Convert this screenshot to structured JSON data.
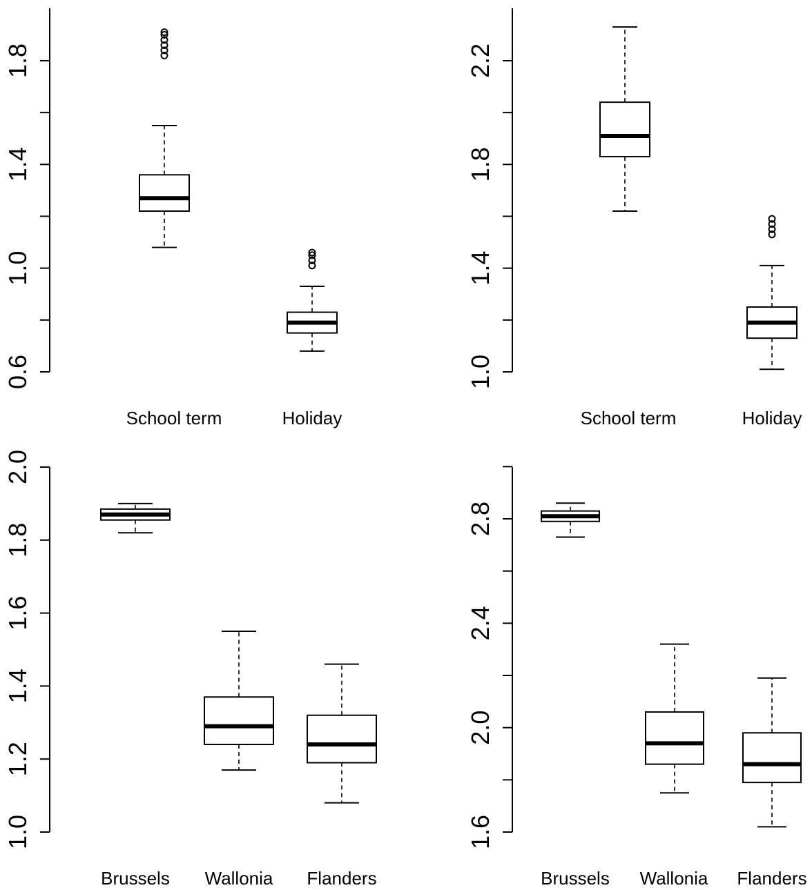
{
  "chart_data": [
    {
      "type": "box",
      "title": "",
      "xlabel": "",
      "ylabel": "",
      "ylim": [
        0.6,
        1.92
      ],
      "yticks": [
        "0.6",
        "1.0",
        "1.4",
        "1.8"
      ],
      "minor_yticks": [
        0.8,
        1.2,
        1.6
      ],
      "categories": [
        "School term",
        "Holiday"
      ],
      "boxes": [
        {
          "whisker_low": 1.08,
          "q1": 1.22,
          "median": 1.27,
          "q3": 1.36,
          "whisker_high": 1.55,
          "outliers": [
            1.82,
            1.84,
            1.86,
            1.88,
            1.9,
            1.91
          ]
        },
        {
          "whisker_low": 0.68,
          "q1": 0.75,
          "median": 0.79,
          "q3": 0.83,
          "whisker_high": 0.93,
          "outliers": [
            1.01,
            1.03,
            1.05,
            1.06
          ]
        }
      ]
    },
    {
      "type": "box",
      "title": "",
      "xlabel": "",
      "ylabel": "",
      "ylim": [
        1.0,
        2.4
      ],
      "yticks": [
        "1.0",
        "1.4",
        "1.8",
        "2.2"
      ],
      "minor_yticks": [
        1.2,
        1.6,
        2.0
      ],
      "categories": [
        "School term",
        "Holiday"
      ],
      "boxes": [
        {
          "whisker_low": 1.62,
          "q1": 1.83,
          "median": 1.91,
          "q3": 2.04,
          "whisker_high": 2.33,
          "outliers": []
        },
        {
          "whisker_low": 1.01,
          "q1": 1.13,
          "median": 1.19,
          "q3": 1.25,
          "whisker_high": 1.41,
          "outliers": [
            1.53,
            1.55,
            1.57,
            1.59
          ]
        }
      ]
    },
    {
      "type": "box",
      "title": "",
      "xlabel": "",
      "ylabel": "",
      "ylim": [
        1.0,
        2.0
      ],
      "yticks": [
        "1.0",
        "1.2",
        "1.4",
        "1.6",
        "1.8",
        "2.0"
      ],
      "minor_yticks": [],
      "categories": [
        "Brussels",
        "Wallonia",
        "Flanders"
      ],
      "boxes": [
        {
          "whisker_low": 1.82,
          "q1": 1.855,
          "median": 1.87,
          "q3": 1.885,
          "whisker_high": 1.9,
          "outliers": []
        },
        {
          "whisker_low": 1.17,
          "q1": 1.24,
          "median": 1.29,
          "q3": 1.37,
          "whisker_high": 1.55,
          "outliers": []
        },
        {
          "whisker_low": 1.08,
          "q1": 1.19,
          "median": 1.24,
          "q3": 1.32,
          "whisker_high": 1.46,
          "outliers": []
        }
      ]
    },
    {
      "type": "box",
      "title": "",
      "xlabel": "",
      "ylabel": "",
      "ylim": [
        1.6,
        3.0
      ],
      "yticks": [
        "1.6",
        "2.0",
        "2.4",
        "2.8"
      ],
      "minor_yticks": [
        1.8,
        2.2,
        2.6,
        3.0
      ],
      "categories": [
        "Brussels",
        "Wallonia",
        "Flanders"
      ],
      "boxes": [
        {
          "whisker_low": 2.73,
          "q1": 2.79,
          "median": 2.81,
          "q3": 2.83,
          "whisker_high": 2.86,
          "outliers": []
        },
        {
          "whisker_low": 1.75,
          "q1": 1.86,
          "median": 1.94,
          "q3": 2.06,
          "whisker_high": 2.32,
          "outliers": []
        },
        {
          "whisker_low": 1.62,
          "q1": 1.79,
          "median": 1.86,
          "q3": 1.98,
          "whisker_high": 2.19,
          "outliers": []
        }
      ]
    }
  ]
}
